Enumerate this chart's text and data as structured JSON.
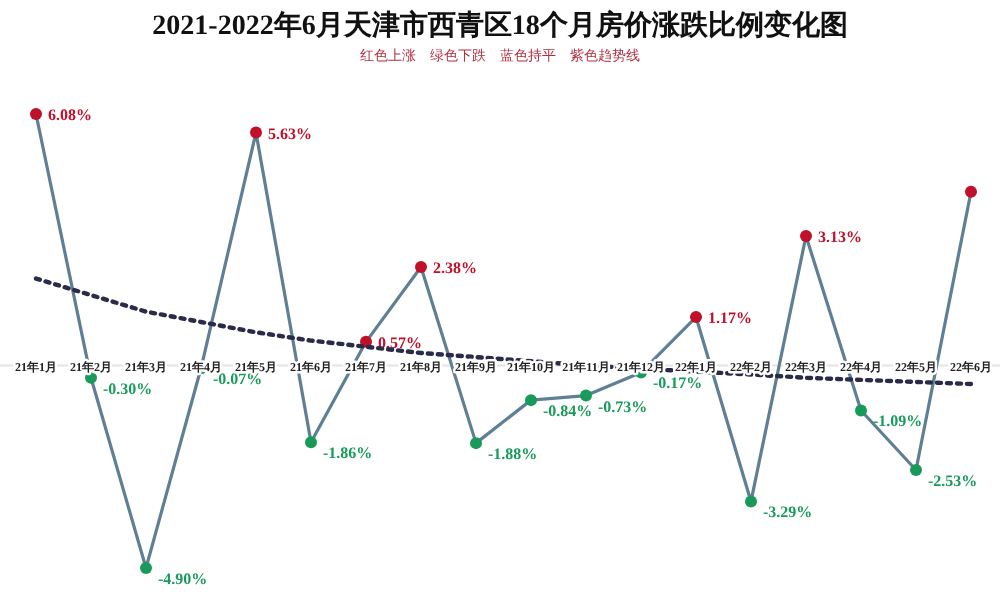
{
  "chart_data": {
    "type": "line",
    "title": "2021-2022年6月天津市西青区18个月房价涨跌比例变化图",
    "subtitle": "红色上涨　绿色下跌　蓝色持平　紫色趋势线",
    "categories": [
      "21年1月",
      "21年2月",
      "21年3月",
      "21年4月",
      "21年5月",
      "21年6月",
      "21年7月",
      "21年8月",
      "21年9月",
      "21年10月",
      "21年11月",
      "21年12月",
      "22年1月",
      "22年2月",
      "22年3月",
      "22年4月",
      "22年5月",
      "22年6月"
    ],
    "marker": "circle",
    "series": [
      {
        "color": "#5f7f94",
        "values": [
          6.08,
          -0.3,
          -4.9,
          -0.07,
          5.63,
          -1.86,
          0.57,
          2.38,
          -1.88,
          -0.84,
          -0.73,
          -0.17,
          1.17,
          -3.29,
          3.13,
          -1.09,
          -2.53,
          4.2
        ],
        "colors": [
          "#c0102a",
          "#1a9a5a",
          "#1a9a5a",
          "#1a9a5a",
          "#c0102a",
          "#1a9a5a",
          "#c0102a",
          "#c0102a",
          "#1a9a5a",
          "#1a9a5a",
          "#1a9a5a",
          "#1a9a5a",
          "#c0102a",
          "#1a9a5a",
          "#c0102a",
          "#1a9a5a",
          "#1a9a5a",
          "#c0102a"
        ],
        "value_labels": [
          "6.08%",
          "-0.30%",
          "-4.90%",
          "-0.07%",
          "5.63%",
          "-1.86%",
          "0.57%",
          "2.38%",
          "-1.88%",
          "-0.84%",
          "-0.73%",
          "-0.17%",
          "1.17%",
          "-3.29%",
          "3.13%",
          "-1.09%",
          "-2.53%",
          null
        ]
      },
      {
        "type": "line",
        "color": "#2a2a4a",
        "line_style": "dotted",
        "marker": "none",
        "values": [
          2.1,
          1.7,
          1.3,
          1.05,
          0.8,
          0.6,
          0.45,
          0.3,
          0.2,
          0.1,
          0.0,
          -0.08,
          -0.15,
          -0.22,
          -0.3,
          -0.35,
          -0.4,
          -0.45
        ]
      }
    ]
  }
}
